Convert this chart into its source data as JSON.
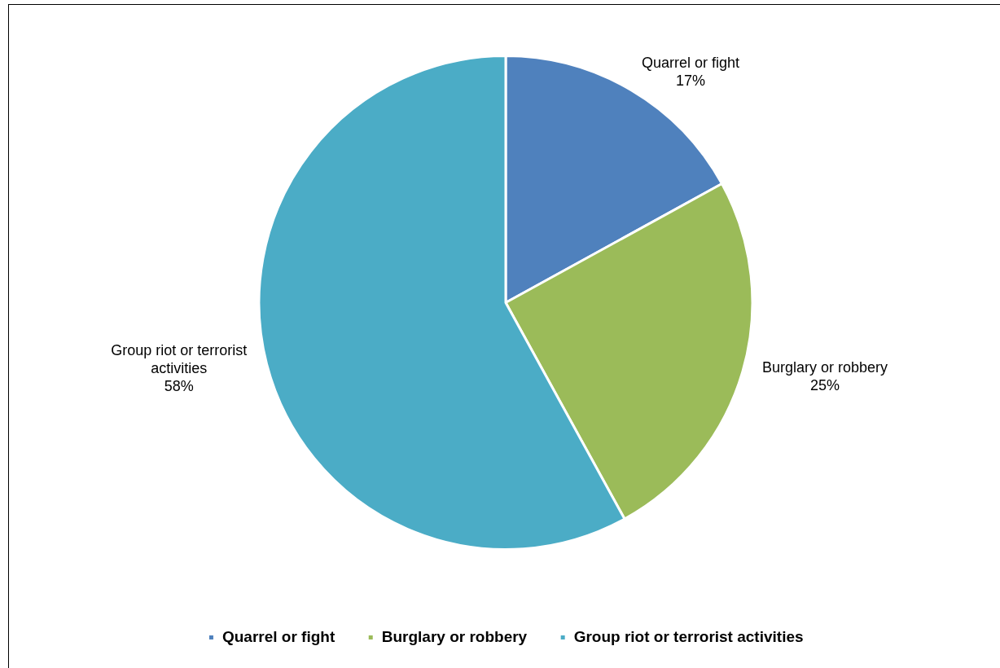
{
  "chart_data": {
    "type": "pie",
    "categories": [
      "Quarrel or fight",
      "Burglary or robbery",
      "Group riot or terrorist activities"
    ],
    "values": [
      17,
      25,
      58
    ],
    "colors": [
      "#4f81bd",
      "#9bbb59",
      "#4bacc6"
    ],
    "value_labels": [
      "17%",
      "25%",
      "58%"
    ],
    "legend": "bottom"
  }
}
